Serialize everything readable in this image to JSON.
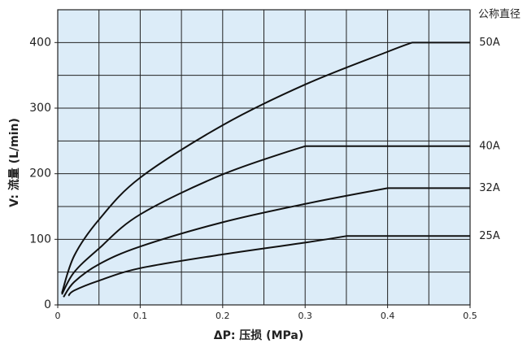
{
  "chart_data": {
    "type": "line",
    "x_label": "ΔP: 压损 (MPa)",
    "y_label": "V: 流量 (L/min)",
    "legend_title": "公称直径",
    "xlim": [
      0,
      0.5
    ],
    "ylim": [
      0,
      450
    ],
    "xticks": [
      0,
      0.1,
      0.2,
      0.3,
      0.4,
      0.5
    ],
    "yticks": [
      0,
      100,
      200,
      300,
      400
    ],
    "xgrid": [
      0.05,
      0.1,
      0.15,
      0.2,
      0.25,
      0.3,
      0.35,
      0.4,
      0.45
    ],
    "ygrid": [
      50,
      100,
      150,
      200,
      250,
      300,
      350,
      400
    ],
    "background": "#dcecf8",
    "series": [
      {
        "name": "50A",
        "color": "#111111",
        "x": [
          0.005,
          0.02,
          0.05,
          0.1,
          0.2,
          0.3,
          0.4,
          0.43,
          0.5
        ],
        "values": [
          18,
          75,
          130,
          194,
          274,
          336,
          386,
          400,
          400
        ]
      },
      {
        "name": "40A",
        "color": "#111111",
        "x": [
          0.005,
          0.02,
          0.05,
          0.1,
          0.2,
          0.3,
          0.5
        ],
        "values": [
          16,
          50,
          86,
          138,
          199,
          242,
          242
        ]
      },
      {
        "name": "32A",
        "color": "#111111",
        "x": [
          0.007,
          0.02,
          0.05,
          0.1,
          0.2,
          0.3,
          0.4,
          0.5
        ],
        "values": [
          12,
          35,
          62,
          89,
          126,
          154,
          178,
          178
        ]
      },
      {
        "name": "25A",
        "color": "#111111",
        "x": [
          0.013,
          0.02,
          0.05,
          0.1,
          0.2,
          0.3,
          0.35,
          0.5
        ],
        "values": [
          14,
          22,
          37,
          56,
          77,
          95,
          105,
          105
        ]
      }
    ]
  }
}
